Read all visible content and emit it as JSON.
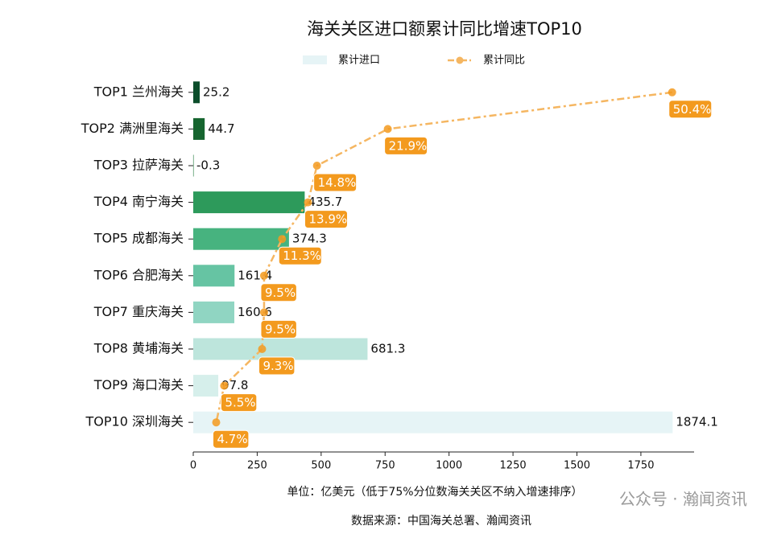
{
  "chart_data": {
    "type": "bar",
    "orientation": "horizontal",
    "title": "海关关区进口额累计同比增速TOP10",
    "categories": [
      "TOP1 兰州海关",
      "TOP2 满洲里海关",
      "TOP3 拉萨海关",
      "TOP4 南宁海关",
      "TOP5 成都海关",
      "TOP6 合肥海关",
      "TOP7 重庆海关",
      "TOP8 黄埔海关",
      "TOP9 海口海关",
      "TOP10 深圳海关"
    ],
    "series": [
      {
        "name": "累计进口",
        "color": "#e6f4f6",
        "colors": [
          "#0b4d2a",
          "#16652f",
          "#1f7a3a",
          "#2d9a5b",
          "#47b37f",
          "#66c4a3",
          "#90d5c2",
          "#bde5dc",
          "#d6efeb",
          "#e6f4f6"
        ],
        "values": [
          25.2,
          44.7,
          -0.3,
          435.7,
          374.3,
          161.4,
          160.6,
          681.3,
          97.8,
          1874.1
        ]
      },
      {
        "name": "累计同比",
        "color": "#f5b661",
        "label_color": "#f39a1e",
        "axis": "x2",
        "values": [
          50.4,
          21.9,
          14.8,
          13.9,
          11.3,
          9.5,
          9.5,
          9.3,
          5.5,
          4.7
        ],
        "value_labels": [
          "50.4%",
          "21.9%",
          "14.8%",
          "13.9%",
          "11.3%",
          "9.5%",
          "9.5%",
          "9.3%",
          "5.5%",
          "4.7%"
        ]
      }
    ],
    "xlim": [
      0,
      1958
    ],
    "xticks": [
      0,
      250,
      500,
      750,
      1000,
      1250,
      1500,
      1750
    ],
    "x2lim": [
      2.4,
      52.6
    ],
    "xlabel": "单位：亿美元（低于75%分位数海关关区不纳入增速排序）",
    "source": "数据来源：中国海关总署、瀚闻资讯",
    "watermark": "公众号 · 瀚闻资讯",
    "grid": false,
    "legend": "top"
  }
}
